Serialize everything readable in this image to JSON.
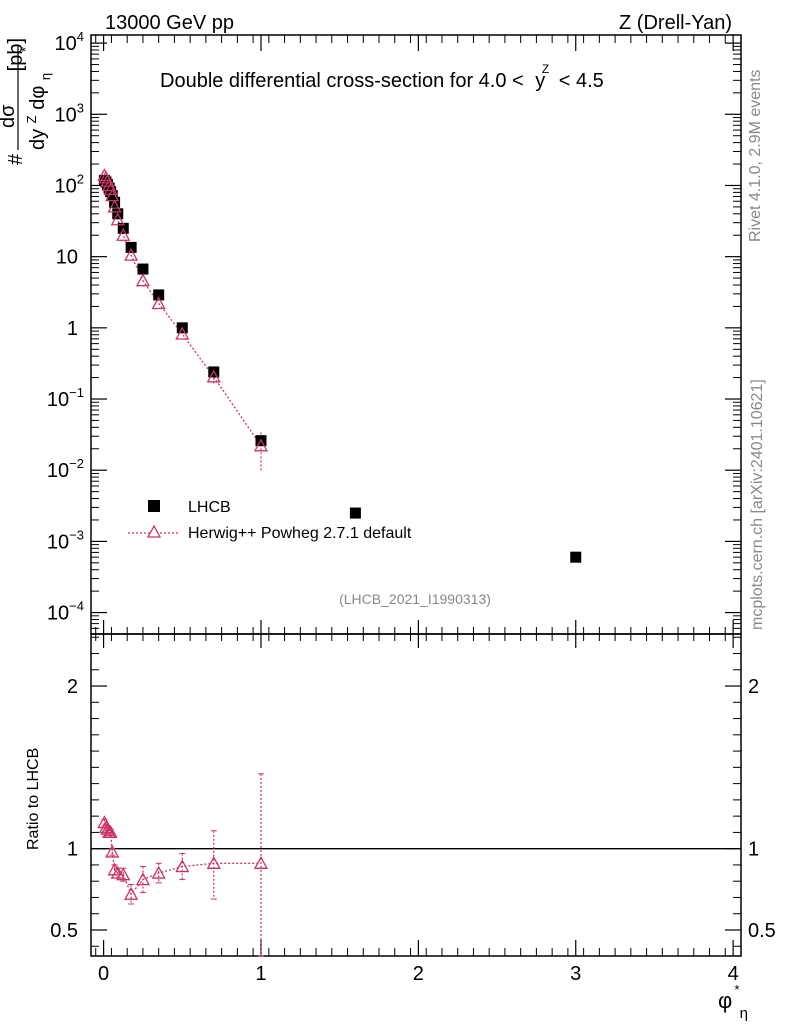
{
  "header": {
    "energy": "13000 GeV pp",
    "process": "Z (Drell-Yan)"
  },
  "side_labels": {
    "rivet": "Rivet 4.1.0,  2.9M events",
    "source": "mcplots.cern.ch [arXiv:2401.10621]"
  },
  "analysis_id": "(LHCB_2021_I1990313)",
  "chart_data": [
    {
      "type": "scatter",
      "panel": "main",
      "title_prefix": "Double differential cross-section for 4.0 <",
      "title_var": "y",
      "title_var_sup": "Z",
      "title_suffix": "< 4.5",
      "xlabel": "φ",
      "xlabel_sup": "*",
      "xlabel_sub": "η",
      "ylabel": {
        "numerator": "dσ",
        "prefix": "#",
        "den_main": "dy",
        "den_sup": "Z",
        "den_mid": "dφ",
        "den_sub": "η",
        "den_star": "*",
        "unit": "[pb]"
      },
      "yscale": "log",
      "ylim": [
        5e-05,
        13000
      ],
      "xlim": [
        -0.08,
        4.05
      ],
      "xticks": [
        {
          "value": 0,
          "label": "0"
        },
        {
          "value": 1,
          "label": "1"
        },
        {
          "value": 2,
          "label": "2"
        },
        {
          "value": 3,
          "label": "3"
        },
        {
          "value": 4,
          "label": "4"
        }
      ],
      "yticks": [
        {
          "value": 0.0001,
          "base": "10",
          "exp": "−4"
        },
        {
          "value": 0.001,
          "base": "10",
          "exp": "−3"
        },
        {
          "value": 0.01,
          "base": "10",
          "exp": "−2"
        },
        {
          "value": 0.1,
          "base": "10",
          "exp": "−1"
        },
        {
          "value": 1,
          "base": "1",
          "exp": ""
        },
        {
          "value": 10,
          "base": "10",
          "exp": ""
        },
        {
          "value": 100,
          "base": "10",
          "exp": "2"
        },
        {
          "value": 1000,
          "base": "10",
          "exp": "3"
        },
        {
          "value": 10000,
          "base": "10",
          "exp": "4"
        }
      ],
      "legend": {
        "placement": "bottom-left"
      },
      "series": [
        {
          "name": "LHCB",
          "style": "filled-square",
          "color": "#000000",
          "x": [
            0.005,
            0.015,
            0.025,
            0.035,
            0.045,
            0.055,
            0.07,
            0.09,
            0.125,
            0.175,
            0.25,
            0.35,
            0.5,
            0.7,
            1.0,
            1.6,
            3.0
          ],
          "y": [
            118,
            112,
            103,
            92,
            82,
            72,
            58,
            40,
            25,
            13.5,
            6.7,
            2.9,
            1.0,
            0.24,
            0.026,
            0.0025,
            0.0006
          ]
        },
        {
          "name": "Herwig++ Powheg 2.7.1 default",
          "style": "open-triangle-dotted-line",
          "color": "#cc3366",
          "x": [
            0.005,
            0.015,
            0.025,
            0.035,
            0.045,
            0.055,
            0.07,
            0.09,
            0.125,
            0.175,
            0.25,
            0.35,
            0.5,
            0.7,
            1.0
          ],
          "y": [
            138,
            128,
            115,
            100,
            88,
            72,
            50,
            33,
            20,
            10.5,
            4.6,
            2.2,
            0.82,
            0.205,
            0.022
          ],
          "err_low": [
            0,
            0,
            0,
            0,
            0,
            0,
            0,
            0,
            0,
            0,
            0,
            0,
            0,
            0.04,
            0.012
          ],
          "err_high": [
            0,
            0,
            0,
            0,
            0,
            0,
            0,
            0,
            0,
            0,
            0,
            0,
            0,
            0.05,
            0.012
          ]
        }
      ]
    },
    {
      "type": "line",
      "panel": "ratio",
      "ylabel": "Ratio to LHCB",
      "ylim": [
        0.34,
        2.32
      ],
      "yticks": [
        {
          "value": 0.5,
          "label": "0.5"
        },
        {
          "value": 1,
          "label": "1"
        },
        {
          "value": 2,
          "label": "2"
        }
      ],
      "reference_line": 1,
      "series": [
        {
          "name": "Herwig++ Powheg 2.7.1 default",
          "x": [
            0.005,
            0.015,
            0.025,
            0.035,
            0.045,
            0.055,
            0.07,
            0.09,
            0.125,
            0.175,
            0.25,
            0.35,
            0.5,
            0.7,
            1.0
          ],
          "y": [
            1.16,
            1.13,
            1.12,
            1.1,
            1.1,
            0.98,
            0.87,
            0.85,
            0.84,
            0.72,
            0.81,
            0.85,
            0.89,
            0.91,
            0.91
          ],
          "err_low": [
            0.02,
            0.02,
            0.02,
            0.02,
            0.02,
            0.02,
            0.03,
            0.03,
            0.04,
            0.06,
            0.08,
            0.06,
            0.08,
            0.22,
            0.6
          ],
          "err_high": [
            0.02,
            0.02,
            0.02,
            0.02,
            0.02,
            0.02,
            0.03,
            0.03,
            0.04,
            0.06,
            0.08,
            0.06,
            0.08,
            0.2,
            0.55
          ]
        }
      ]
    }
  ]
}
